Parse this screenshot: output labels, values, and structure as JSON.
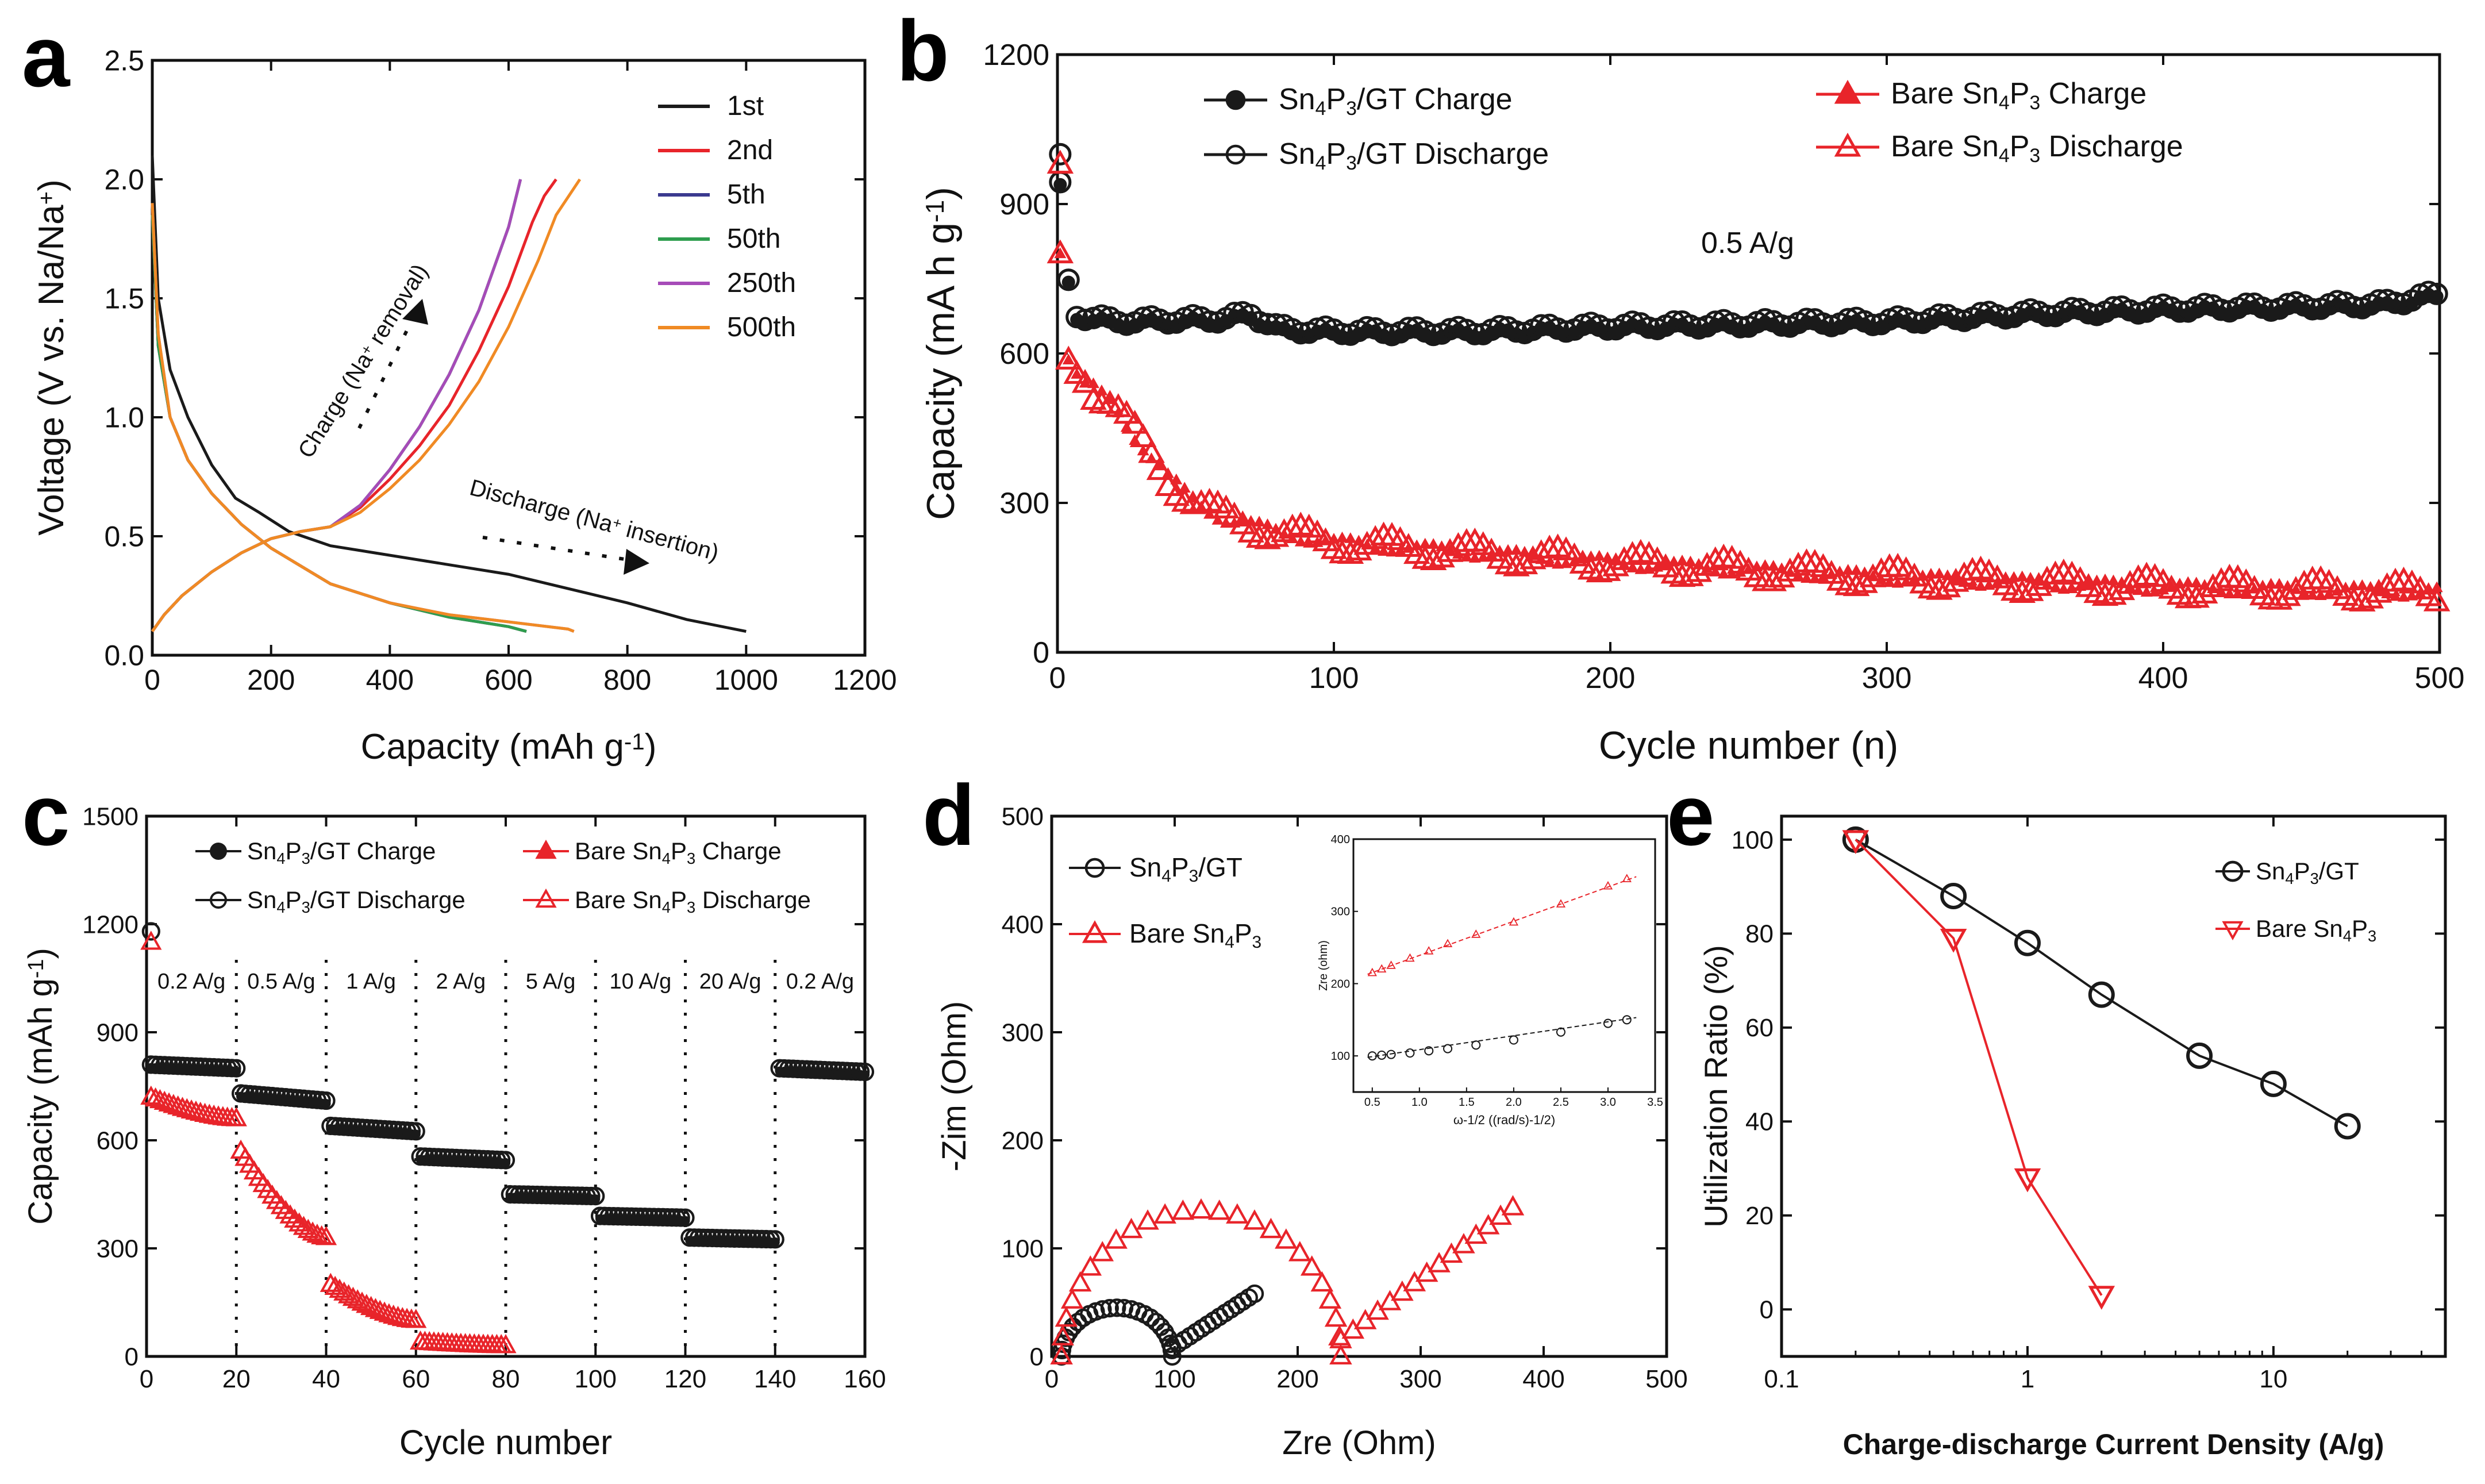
{
  "colors": {
    "black": "#1a1a1a",
    "red": "#e8242a",
    "purple": "#7b3fb0",
    "navy": "#3b3a8f",
    "green": "#2e9d4e",
    "magenta": "#a64bb8",
    "orange": "#f08a24",
    "gray": "#666666"
  },
  "panels": {
    "a": {
      "letter": "a"
    },
    "b": {
      "letter": "b"
    },
    "c": {
      "letter": "c"
    },
    "d": {
      "letter": "d"
    },
    "e": {
      "letter": "e"
    }
  },
  "chart_data": [
    {
      "id": "a",
      "type": "line",
      "xlabel": "Capacity (mAh g",
      "xlabel_sup": "-1",
      "xlabel_end": ")",
      "ylabel": "Voltage (V vs. Na/Na",
      "ylabel_sup": "+",
      "ylabel_end": ")",
      "xlim": [
        0,
        1200
      ],
      "ylim": [
        0,
        2.5
      ],
      "xticks": [
        0,
        200,
        400,
        600,
        800,
        1000,
        1200
      ],
      "yticks": [
        0.0,
        0.5,
        1.0,
        1.5,
        2.0,
        2.5
      ],
      "ytick_labels": [
        "0.0",
        "0.5",
        "1.0",
        "1.5",
        "2.0",
        "2.5"
      ],
      "legend": [
        "1st",
        "2nd",
        "5th",
        "50th",
        "250th",
        "500th"
      ],
      "annotations": {
        "charge": "Charge (Na",
        "charge_sup": "+",
        "charge_end": " removal)",
        "discharge": "Discharge (Na",
        "discharge_sup": "+",
        "discharge_end": " insertion)"
      },
      "series": [
        {
          "name": "1st",
          "color": "#1a1a1a",
          "x": [
            0,
            10,
            30,
            60,
            100,
            140,
            180,
            230,
            300,
            400,
            500,
            600,
            700,
            800,
            900,
            1000
          ],
          "y": [
            2.1,
            1.5,
            1.2,
            1.0,
            0.8,
            0.66,
            0.6,
            0.52,
            0.46,
            0.42,
            0.38,
            0.34,
            0.28,
            0.22,
            0.15,
            0.1
          ]
        },
        {
          "name": "2nd",
          "color": "#e8242a",
          "x": [
            0,
            10,
            30,
            60,
            100,
            150,
            200,
            300,
            400,
            500,
            600,
            630
          ],
          "y": [
            1.85,
            1.3,
            1.0,
            0.82,
            0.68,
            0.55,
            0.45,
            0.3,
            0.22,
            0.16,
            0.12,
            0.1
          ]
        },
        {
          "name": "5th",
          "color": "#3b3a8f",
          "x": [
            0,
            10,
            30,
            60,
            100,
            150,
            200,
            300,
            400,
            500,
            600,
            630
          ],
          "y": [
            1.85,
            1.3,
            1.0,
            0.82,
            0.68,
            0.55,
            0.45,
            0.3,
            0.22,
            0.16,
            0.12,
            0.1
          ]
        },
        {
          "name": "50th",
          "color": "#2e9d4e",
          "x": [
            0,
            10,
            30,
            60,
            100,
            150,
            200,
            300,
            400,
            500,
            600,
            630
          ],
          "y": [
            1.85,
            1.3,
            1.0,
            0.82,
            0.68,
            0.55,
            0.45,
            0.3,
            0.22,
            0.16,
            0.12,
            0.1
          ]
        },
        {
          "name": "250th",
          "color": "#a64bb8",
          "x": [
            0,
            10,
            30,
            60,
            100,
            150,
            200,
            300,
            400,
            500,
            600,
            700,
            710
          ],
          "y": [
            1.9,
            1.35,
            1.0,
            0.82,
            0.68,
            0.55,
            0.45,
            0.3,
            0.22,
            0.17,
            0.14,
            0.11,
            0.1
          ]
        },
        {
          "name": "500th",
          "color": "#f08a24",
          "x": [
            0,
            10,
            30,
            60,
            100,
            150,
            200,
            300,
            400,
            500,
            600,
            700,
            710
          ],
          "y": [
            1.9,
            1.35,
            1.0,
            0.82,
            0.68,
            0.55,
            0.45,
            0.3,
            0.22,
            0.17,
            0.14,
            0.11,
            0.1
          ]
        },
        {
          "name": "2nd-charge",
          "color": "#e8242a",
          "x": [
            0,
            20,
            50,
            100,
            150,
            200,
            250,
            300,
            350,
            400,
            450,
            500,
            550,
            600,
            640,
            660,
            680
          ],
          "y": [
            0.1,
            0.17,
            0.25,
            0.35,
            0.43,
            0.49,
            0.52,
            0.54,
            0.62,
            0.74,
            0.88,
            1.05,
            1.28,
            1.55,
            1.82,
            1.93,
            2.0
          ]
        },
        {
          "name": "5th-charge",
          "color": "#3b3a8f",
          "x": [
            0,
            20,
            50,
            100,
            150,
            200,
            250,
            300,
            350,
            400,
            450,
            500,
            550,
            600,
            620
          ],
          "y": [
            0.1,
            0.17,
            0.25,
            0.35,
            0.43,
            0.49,
            0.52,
            0.54,
            0.63,
            0.78,
            0.96,
            1.18,
            1.45,
            1.8,
            2.0
          ]
        },
        {
          "name": "50th-charge",
          "color": "#2e9d4e",
          "x": [
            0,
            20,
            50,
            100,
            150,
            200,
            250,
            300,
            350,
            400,
            450,
            500,
            550,
            600,
            620
          ],
          "y": [
            0.1,
            0.17,
            0.25,
            0.35,
            0.43,
            0.49,
            0.52,
            0.54,
            0.63,
            0.78,
            0.96,
            1.18,
            1.45,
            1.8,
            2.0
          ]
        },
        {
          "name": "250th-charge",
          "color": "#a64bb8",
          "x": [
            0,
            20,
            50,
            100,
            150,
            200,
            250,
            300,
            350,
            400,
            450,
            500,
            550,
            600,
            620
          ],
          "y": [
            0.1,
            0.17,
            0.25,
            0.35,
            0.43,
            0.49,
            0.52,
            0.54,
            0.63,
            0.78,
            0.96,
            1.18,
            1.45,
            1.8,
            2.0
          ]
        },
        {
          "name": "500th-charge",
          "color": "#f08a24",
          "x": [
            0,
            20,
            50,
            100,
            150,
            200,
            250,
            300,
            350,
            400,
            450,
            500,
            550,
            600,
            650,
            680,
            720
          ],
          "y": [
            0.1,
            0.17,
            0.25,
            0.35,
            0.43,
            0.49,
            0.52,
            0.54,
            0.6,
            0.7,
            0.82,
            0.97,
            1.15,
            1.38,
            1.66,
            1.85,
            2.0
          ]
        }
      ]
    },
    {
      "id": "b",
      "type": "scatter",
      "xlabel": "Cycle number (n)",
      "ylabel": "Capacity (mA h g",
      "ylabel_sup": "-1",
      "ylabel_end": ")",
      "xlim": [
        0,
        500
      ],
      "ylim": [
        0,
        1200
      ],
      "xticks": [
        0,
        100,
        200,
        300,
        400,
        500
      ],
      "yticks": [
        0,
        300,
        600,
        900,
        1200
      ],
      "annotation": "0.5 A/g",
      "legend": [
        {
          "text": "Sn",
          "sub1": "4",
          "mid": "P",
          "sub2": "3",
          "end": "/GT Charge",
          "marker": "filled-circle"
        },
        {
          "text": "Sn",
          "sub1": "4",
          "mid": "P",
          "sub2": "3",
          "end": "/GT Discharge",
          "marker": "open-circle"
        },
        {
          "text": "Bare Sn",
          "sub1": "4",
          "mid": "P",
          "sub2": "3",
          "end": " Charge",
          "marker": "filled-triangle"
        },
        {
          "text": "Bare Sn",
          "sub1": "4",
          "mid": "P",
          "sub2": "3",
          "end": " Discharge",
          "marker": "open-triangle"
        }
      ],
      "series": [
        {
          "name": "Sn4P3/GT Charge",
          "color": "#1a1a1a",
          "x": [
            0,
            5,
            20,
            60,
            70,
            80,
            100,
            150,
            200,
            250,
            300,
            350,
            400,
            450,
            480,
            500
          ],
          "y": [
            1000,
            680,
            665,
            670,
            680,
            650,
            645,
            645,
            655,
            660,
            665,
            680,
            690,
            695,
            700,
            720
          ]
        },
        {
          "name": "Bare Sn4P3 Charge",
          "color": "#e8242a",
          "x": [
            0,
            2,
            5,
            10,
            20,
            30,
            40,
            50,
            60,
            80,
            100,
            150,
            200,
            250,
            300,
            350,
            400,
            450,
            500
          ],
          "y": [
            980,
            620,
            570,
            540,
            500,
            420,
            350,
            300,
            270,
            240,
            220,
            200,
            180,
            165,
            150,
            140,
            130,
            125,
            120
          ]
        }
      ]
    },
    {
      "id": "c",
      "type": "scatter",
      "xlabel": "Cycle number",
      "ylabel": "Capacity (mAh g",
      "ylabel_sup": "-1",
      "ylabel_end": ")",
      "xlim": [
        0,
        160
      ],
      "ylim": [
        0,
        1500
      ],
      "xticks": [
        0,
        20,
        40,
        60,
        80,
        100,
        120,
        140,
        160
      ],
      "yticks": [
        0,
        300,
        600,
        900,
        1200,
        1500
      ],
      "rates": [
        "0.2 A/g",
        "0.5 A/g",
        "1 A/g",
        "2 A/g",
        "5 A/g",
        "10 A/g",
        "20 A/g",
        "0.2 A/g"
      ],
      "rate_boundaries": [
        20,
        40,
        60,
        80,
        100,
        120,
        140
      ],
      "legend": [
        {
          "text": "Sn",
          "sub1": "4",
          "mid": "P",
          "sub2": "3",
          "end": "/GT Charge",
          "marker": "filled-circle"
        },
        {
          "text": "Sn",
          "sub1": "4",
          "mid": "P",
          "sub2": "3",
          "end": "/GT Discharge",
          "marker": "open-circle"
        },
        {
          "text": "Bare Sn",
          "sub1": "4",
          "mid": "P",
          "sub2": "3",
          "end": " Charge",
          "marker": "filled-triangle"
        },
        {
          "text": "Bare Sn",
          "sub1": "4",
          "mid": "P",
          "sub2": "3",
          "end": " Discharge",
          "marker": "open-triangle"
        }
      ],
      "series": [
        {
          "name": "Sn4P3/GT",
          "color": "#1a1a1a",
          "segments": [
            [
              1,
              20,
              810,
              800
            ],
            [
              21,
              40,
              730,
              710
            ],
            [
              41,
              60,
              640,
              625
            ],
            [
              61,
              80,
              555,
              545
            ],
            [
              81,
              100,
              450,
              445
            ],
            [
              101,
              120,
              390,
              385
            ],
            [
              121,
              140,
              330,
              325
            ],
            [
              141,
              160,
              800,
              790
            ]
          ]
        },
        {
          "name": "Bare Sn4P3",
          "color": "#e8242a",
          "segments": [
            [
              1,
              20,
              720,
              660
            ],
            [
              21,
              40,
              570,
              330
            ],
            [
              41,
              60,
              200,
              100
            ],
            [
              61,
              80,
              40,
              30
            ]
          ]
        }
      ],
      "first_points": {
        "sn_gt": 1180,
        "bare": 1150
      }
    },
    {
      "id": "d",
      "type": "scatter",
      "xlabel": "Zre (Ohm)",
      "ylabel": "-Zim (Ohm)",
      "xlim": [
        0,
        500
      ],
      "ylim": [
        0,
        500
      ],
      "xticks": [
        0,
        100,
        200,
        300,
        400,
        500
      ],
      "yticks": [
        0,
        100,
        200,
        300,
        400,
        500
      ],
      "legend": [
        {
          "text": "Sn",
          "sub1": "4",
          "mid": "P",
          "sub2": "3",
          "end": "/GT",
          "marker": "open-circle"
        },
        {
          "text": "Bare Sn",
          "sub1": "4",
          "mid": "P",
          "sub2": "3",
          "end": "",
          "marker": "open-triangle"
        }
      ],
      "series": [
        {
          "name": "Sn4P3/GT",
          "color": "#1a1a1a",
          "arc": {
            "x0": 8,
            "x1": 98,
            "peak": 45
          },
          "tail": {
            "x": [
              98,
              165
            ],
            "y": [
              8,
              58
            ]
          }
        },
        {
          "name": "Bare Sn4P3",
          "color": "#e8242a",
          "arc": {
            "x0": 8,
            "x1": 235,
            "peak": 135
          },
          "tail": {
            "x": [
              235,
              375
            ],
            "y": [
              15,
              138
            ]
          }
        }
      ],
      "inset": {
        "xlabel": "ω-1/2 ((rad/s)-1/2)",
        "ylabel": "Zre (ohm)",
        "xlim": [
          0.3,
          3.5
        ],
        "ylim": [
          50,
          400
        ],
        "xticks": [
          0.5,
          1.0,
          1.5,
          2.0,
          2.5,
          3.0,
          3.5
        ],
        "yticks": [
          100,
          200,
          300,
          400
        ],
        "series": [
          {
            "name": "Bare Sn4P3",
            "color": "#e8242a",
            "x": [
              0.5,
              0.6,
              0.7,
              0.9,
              1.1,
              1.3,
              1.6,
              2.0,
              2.5,
              3.0,
              3.2
            ],
            "y": [
              215,
              220,
              225,
              235,
              245,
              255,
              268,
              285,
              310,
              335,
              345
            ]
          },
          {
            "name": "Sn4P3/GT",
            "color": "#1a1a1a",
            "x": [
              0.5,
              0.6,
              0.7,
              0.9,
              1.1,
              1.3,
              1.6,
              2.0,
              2.5,
              3.0,
              3.2
            ],
            "y": [
              100,
              101,
              102,
              104,
              107,
              110,
              115,
              122,
              133,
              145,
              150
            ]
          }
        ]
      }
    },
    {
      "id": "e",
      "type": "line",
      "xlabel": "Charge-discharge Current Density (A/g)",
      "ylabel": "Utilization Ratio (%)",
      "xscale": "log",
      "xlim": [
        0.1,
        50
      ],
      "ylim": [
        -10,
        105
      ],
      "xticks": [
        0.1,
        1,
        10
      ],
      "xtick_labels": [
        "0.1",
        "1",
        "10"
      ],
      "yticks": [
        0,
        20,
        40,
        60,
        80,
        100
      ],
      "legend": [
        {
          "text": "Sn",
          "sub1": "4",
          "mid": "P",
          "sub2": "3",
          "end": "/GT"
        },
        {
          "text": "Bare Sn",
          "sub1": "4",
          "mid": "P",
          "sub2": "3",
          "end": ""
        }
      ],
      "series": [
        {
          "name": "Sn4P3/GT",
          "color": "#1a1a1a",
          "marker": "open-circle",
          "x": [
            0.2,
            0.5,
            1,
            2,
            5,
            10,
            20
          ],
          "y": [
            100,
            88,
            78,
            67,
            54,
            48,
            39
          ]
        },
        {
          "name": "Bare Sn4P3",
          "color": "#e8242a",
          "marker": "open-triangle-down",
          "x": [
            0.2,
            0.5,
            1,
            2
          ],
          "y": [
            100,
            79,
            28,
            3
          ]
        }
      ]
    }
  ]
}
